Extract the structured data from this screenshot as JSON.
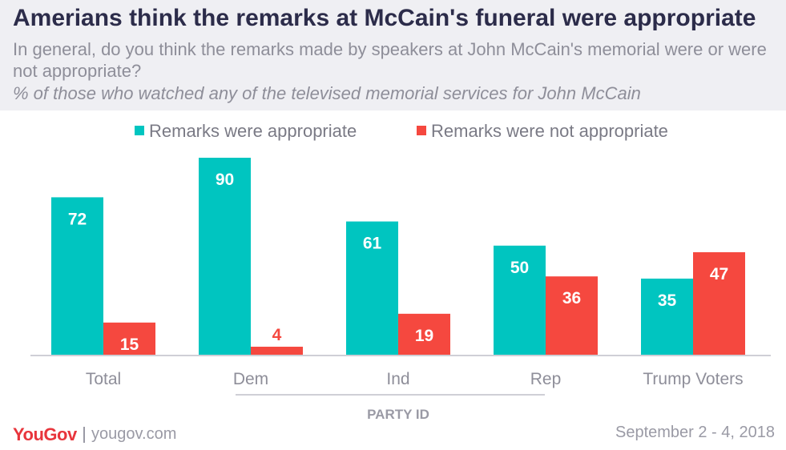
{
  "header": {
    "title": "Amerians think the remarks at McCain's funeral were appropriate",
    "subtitle": "In general, do you think the remarks made by speakers at John McCain's memorial were or were not appropriate?",
    "note": "% of those who watched any of the televised memorial services for John McCain"
  },
  "chart_data": {
    "type": "bar",
    "categories": [
      "Total",
      "Dem",
      "Ind",
      "Rep",
      "Trump Voters"
    ],
    "series": [
      {
        "name": "Remarks were appropriate",
        "color": "#00c5c0",
        "values": [
          72,
          90,
          61,
          50,
          35
        ]
      },
      {
        "name": "Remarks were not appropriate",
        "color": "#f5483f",
        "values": [
          15,
          4,
          19,
          36,
          47
        ]
      }
    ],
    "group_label": "PARTY ID",
    "legend_placement": "top",
    "ylim": [
      0,
      90
    ],
    "grid": false
  },
  "footer": {
    "logo": "YouGov",
    "site": "yougov.com",
    "date": "September 2 - 4, 2018"
  }
}
